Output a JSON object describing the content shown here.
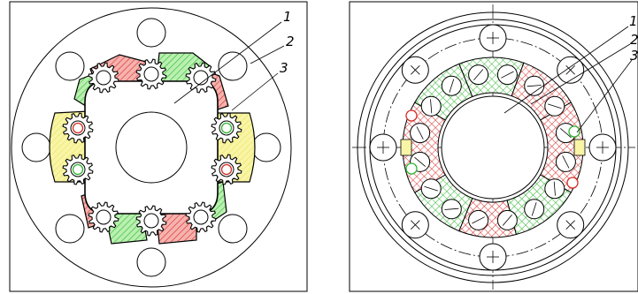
{
  "figure": {
    "left_panel": {
      "callouts": [
        "1",
        "2",
        "3"
      ]
    },
    "right_panel": {
      "callouts": [
        "1",
        "2",
        "3"
      ]
    }
  },
  "colors": {
    "red_part": "#e8504a",
    "green_part": "#4fd24f",
    "yellow_part": "#f4ef73",
    "outline": "#000000"
  }
}
